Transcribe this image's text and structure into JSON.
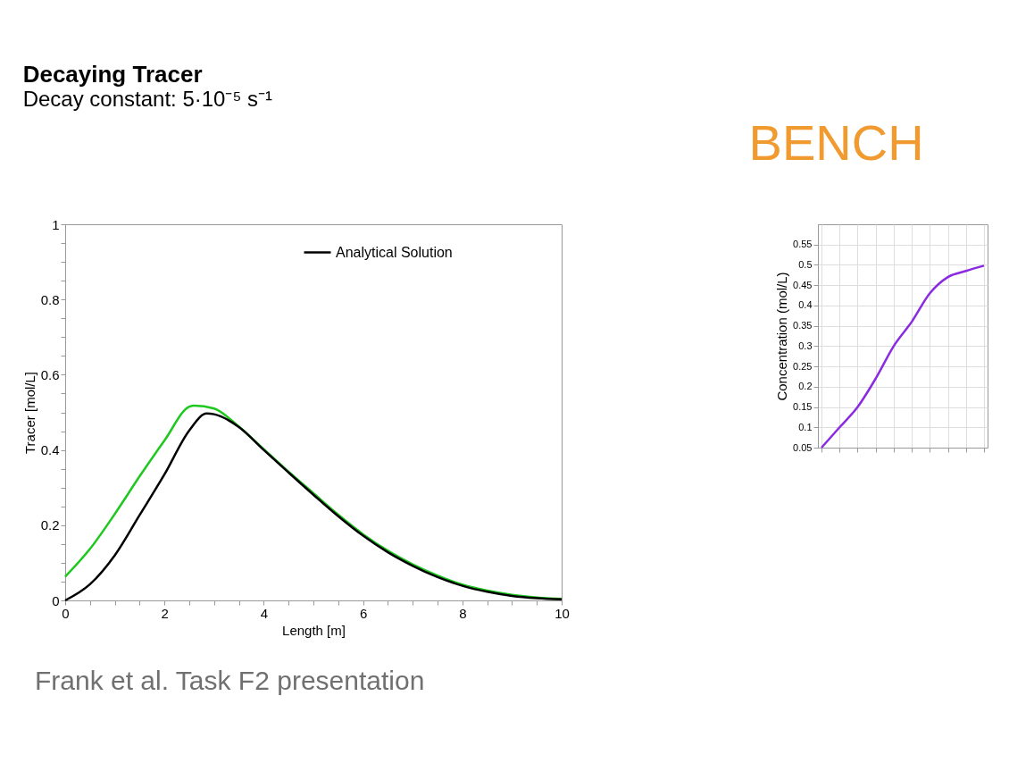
{
  "chart_data": [
    {
      "type": "line",
      "title": "Decaying Tracer",
      "subtitle": "Decay constant: 5·10⁻⁵ s⁻¹",
      "xlabel": "Length [m]",
      "ylabel": "Tracer [mol/L]",
      "annotations": [
        "Frank et al. Task F2 presentation"
      ],
      "xlim": [
        0,
        10
      ],
      "ylim": [
        0,
        1
      ],
      "xticks": [
        0,
        {
          "value": 0.5,
          "label": null
        },
        {
          "value": 1,
          "label": null
        },
        {
          "value": 1.5,
          "label": null
        },
        2,
        {
          "value": 2.5,
          "label": null
        },
        {
          "value": 3,
          "label": null
        },
        {
          "value": 3.5,
          "label": null
        },
        4,
        {
          "value": 4.5,
          "label": null
        },
        {
          "value": 5,
          "label": null
        },
        {
          "value": 5.5,
          "label": null
        },
        6,
        {
          "value": 6.5,
          "label": null
        },
        {
          "value": 7,
          "label": null
        },
        {
          "value": 7.5,
          "label": null
        },
        8,
        {
          "value": 8.5,
          "label": null
        },
        {
          "value": 9,
          "label": null
        },
        {
          "value": 9.5,
          "label": null
        },
        10
      ],
      "yticks": [
        0,
        {
          "value": 0.05,
          "label": null
        },
        {
          "value": 0.1,
          "label": null
        },
        {
          "value": 0.15,
          "label": null
        },
        0.2,
        {
          "value": 0.25,
          "label": null
        },
        {
          "value": 0.3,
          "label": null
        },
        {
          "value": 0.35,
          "label": null
        },
        0.4,
        {
          "value": 0.45,
          "label": null
        },
        {
          "value": 0.5,
          "label": null
        },
        {
          "value": 0.55,
          "label": null
        },
        0.6,
        {
          "value": 0.65,
          "label": null
        },
        {
          "value": 0.7,
          "label": null
        },
        {
          "value": 0.75,
          "label": null
        },
        0.8,
        {
          "value": 0.85,
          "label": null
        },
        {
          "value": 0.9,
          "label": null
        },
        {
          "value": 0.95,
          "label": null
        },
        1
      ],
      "legend": "top right",
      "grid": false,
      "series": [
        {
          "color": "#1ec81e",
          "x": [
            0,
            0.5,
            1,
            1.5,
            2,
            2.5,
            2.6,
            3,
            3.5,
            4,
            4.5,
            5,
            5.5,
            6,
            6.5,
            7,
            7.5,
            8,
            8.5,
            9,
            9.5,
            10
          ],
          "values": [
            0.063,
            0.137,
            0.23,
            0.33,
            0.425,
            0.515,
            0.518,
            0.51,
            0.462,
            0.402,
            0.342,
            0.285,
            0.228,
            0.176,
            0.132,
            0.096,
            0.066,
            0.042,
            0.026,
            0.015,
            0.008,
            0.004
          ]
        },
        {
          "name": "Analytical Solution",
          "color": "#000000",
          "x": [
            0,
            0.5,
            1,
            1.5,
            2,
            2.5,
            2.85,
            3,
            3.5,
            4,
            4.5,
            5,
            5.5,
            6,
            6.5,
            7,
            7.5,
            8,
            8.5,
            9,
            9.5,
            10
          ],
          "values": [
            0,
            0.043,
            0.12,
            0.227,
            0.335,
            0.452,
            0.497,
            0.495,
            0.461,
            0.4,
            0.34,
            0.281,
            0.224,
            0.172,
            0.128,
            0.092,
            0.062,
            0.039,
            0.023,
            0.012,
            0.006,
            0.003
          ]
        }
      ]
    },
    {
      "type": "line",
      "title": "BENCH",
      "ylabel": "Concentration (mol/L)",
      "categories": [
        null,
        null,
        null,
        null,
        null,
        null,
        null,
        null,
        null,
        null
      ],
      "ylim": [
        0.05,
        0.6
      ],
      "yticks": [
        0.05,
        0.1,
        0.15,
        0.2,
        0.25,
        0.3,
        0.35,
        0.4,
        0.45,
        0.5,
        0.55
      ],
      "tick_labels": "y",
      "grid": true,
      "series": [
        {
          "color": "#8a2be2",
          "values": [
            0.05,
            0.1,
            0.15,
            0.22,
            0.3,
            0.36,
            0.43,
            0.47,
            0.485,
            0.498
          ]
        }
      ]
    }
  ]
}
